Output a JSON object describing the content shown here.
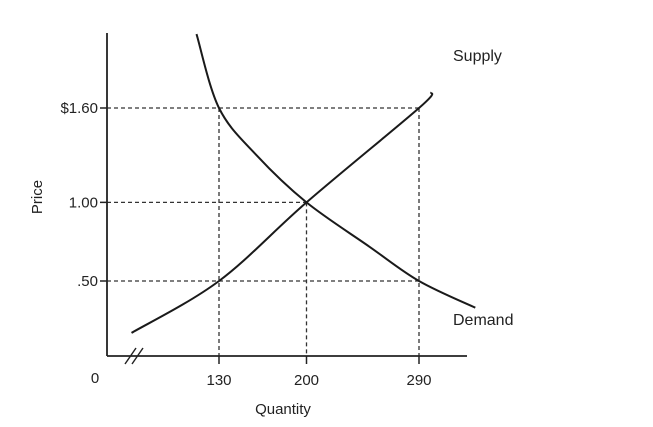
{
  "chart_data": {
    "type": "line",
    "xlabel": "Quantity",
    "ylabel": "Price",
    "origin_label": "0",
    "x_ticks": [
      {
        "value": 130,
        "label": "130"
      },
      {
        "value": 200,
        "label": "200"
      },
      {
        "value": 290,
        "label": "290"
      }
    ],
    "y_ticks": [
      {
        "value": 0.5,
        "label": ".50"
      },
      {
        "value": 1.0,
        "label": "1.00"
      },
      {
        "value": 1.6,
        "label": "$1.60"
      }
    ],
    "axis_break": true,
    "series": [
      {
        "name": "Supply",
        "points": [
          [
            60,
            0.17
          ],
          [
            130,
            0.5
          ],
          [
            200,
            1.0
          ],
          [
            290,
            1.6
          ],
          [
            300,
            1.7
          ]
        ]
      },
      {
        "name": "Demand",
        "points": [
          [
            112,
            2.07
          ],
          [
            130,
            1.6
          ],
          [
            160,
            1.3
          ],
          [
            200,
            1.0
          ],
          [
            250,
            0.72
          ],
          [
            290,
            0.5
          ],
          [
            335,
            0.33
          ]
        ]
      }
    ],
    "reference_points": [
      [
        130,
        1.6
      ],
      [
        290,
        1.6
      ],
      [
        200,
        1.0
      ],
      [
        130,
        0.5
      ],
      [
        290,
        0.5
      ]
    ],
    "grid": false,
    "legend": "none",
    "colors": {
      "line": "#1a1a1a",
      "guide": "#333333",
      "text": "#222222"
    }
  }
}
